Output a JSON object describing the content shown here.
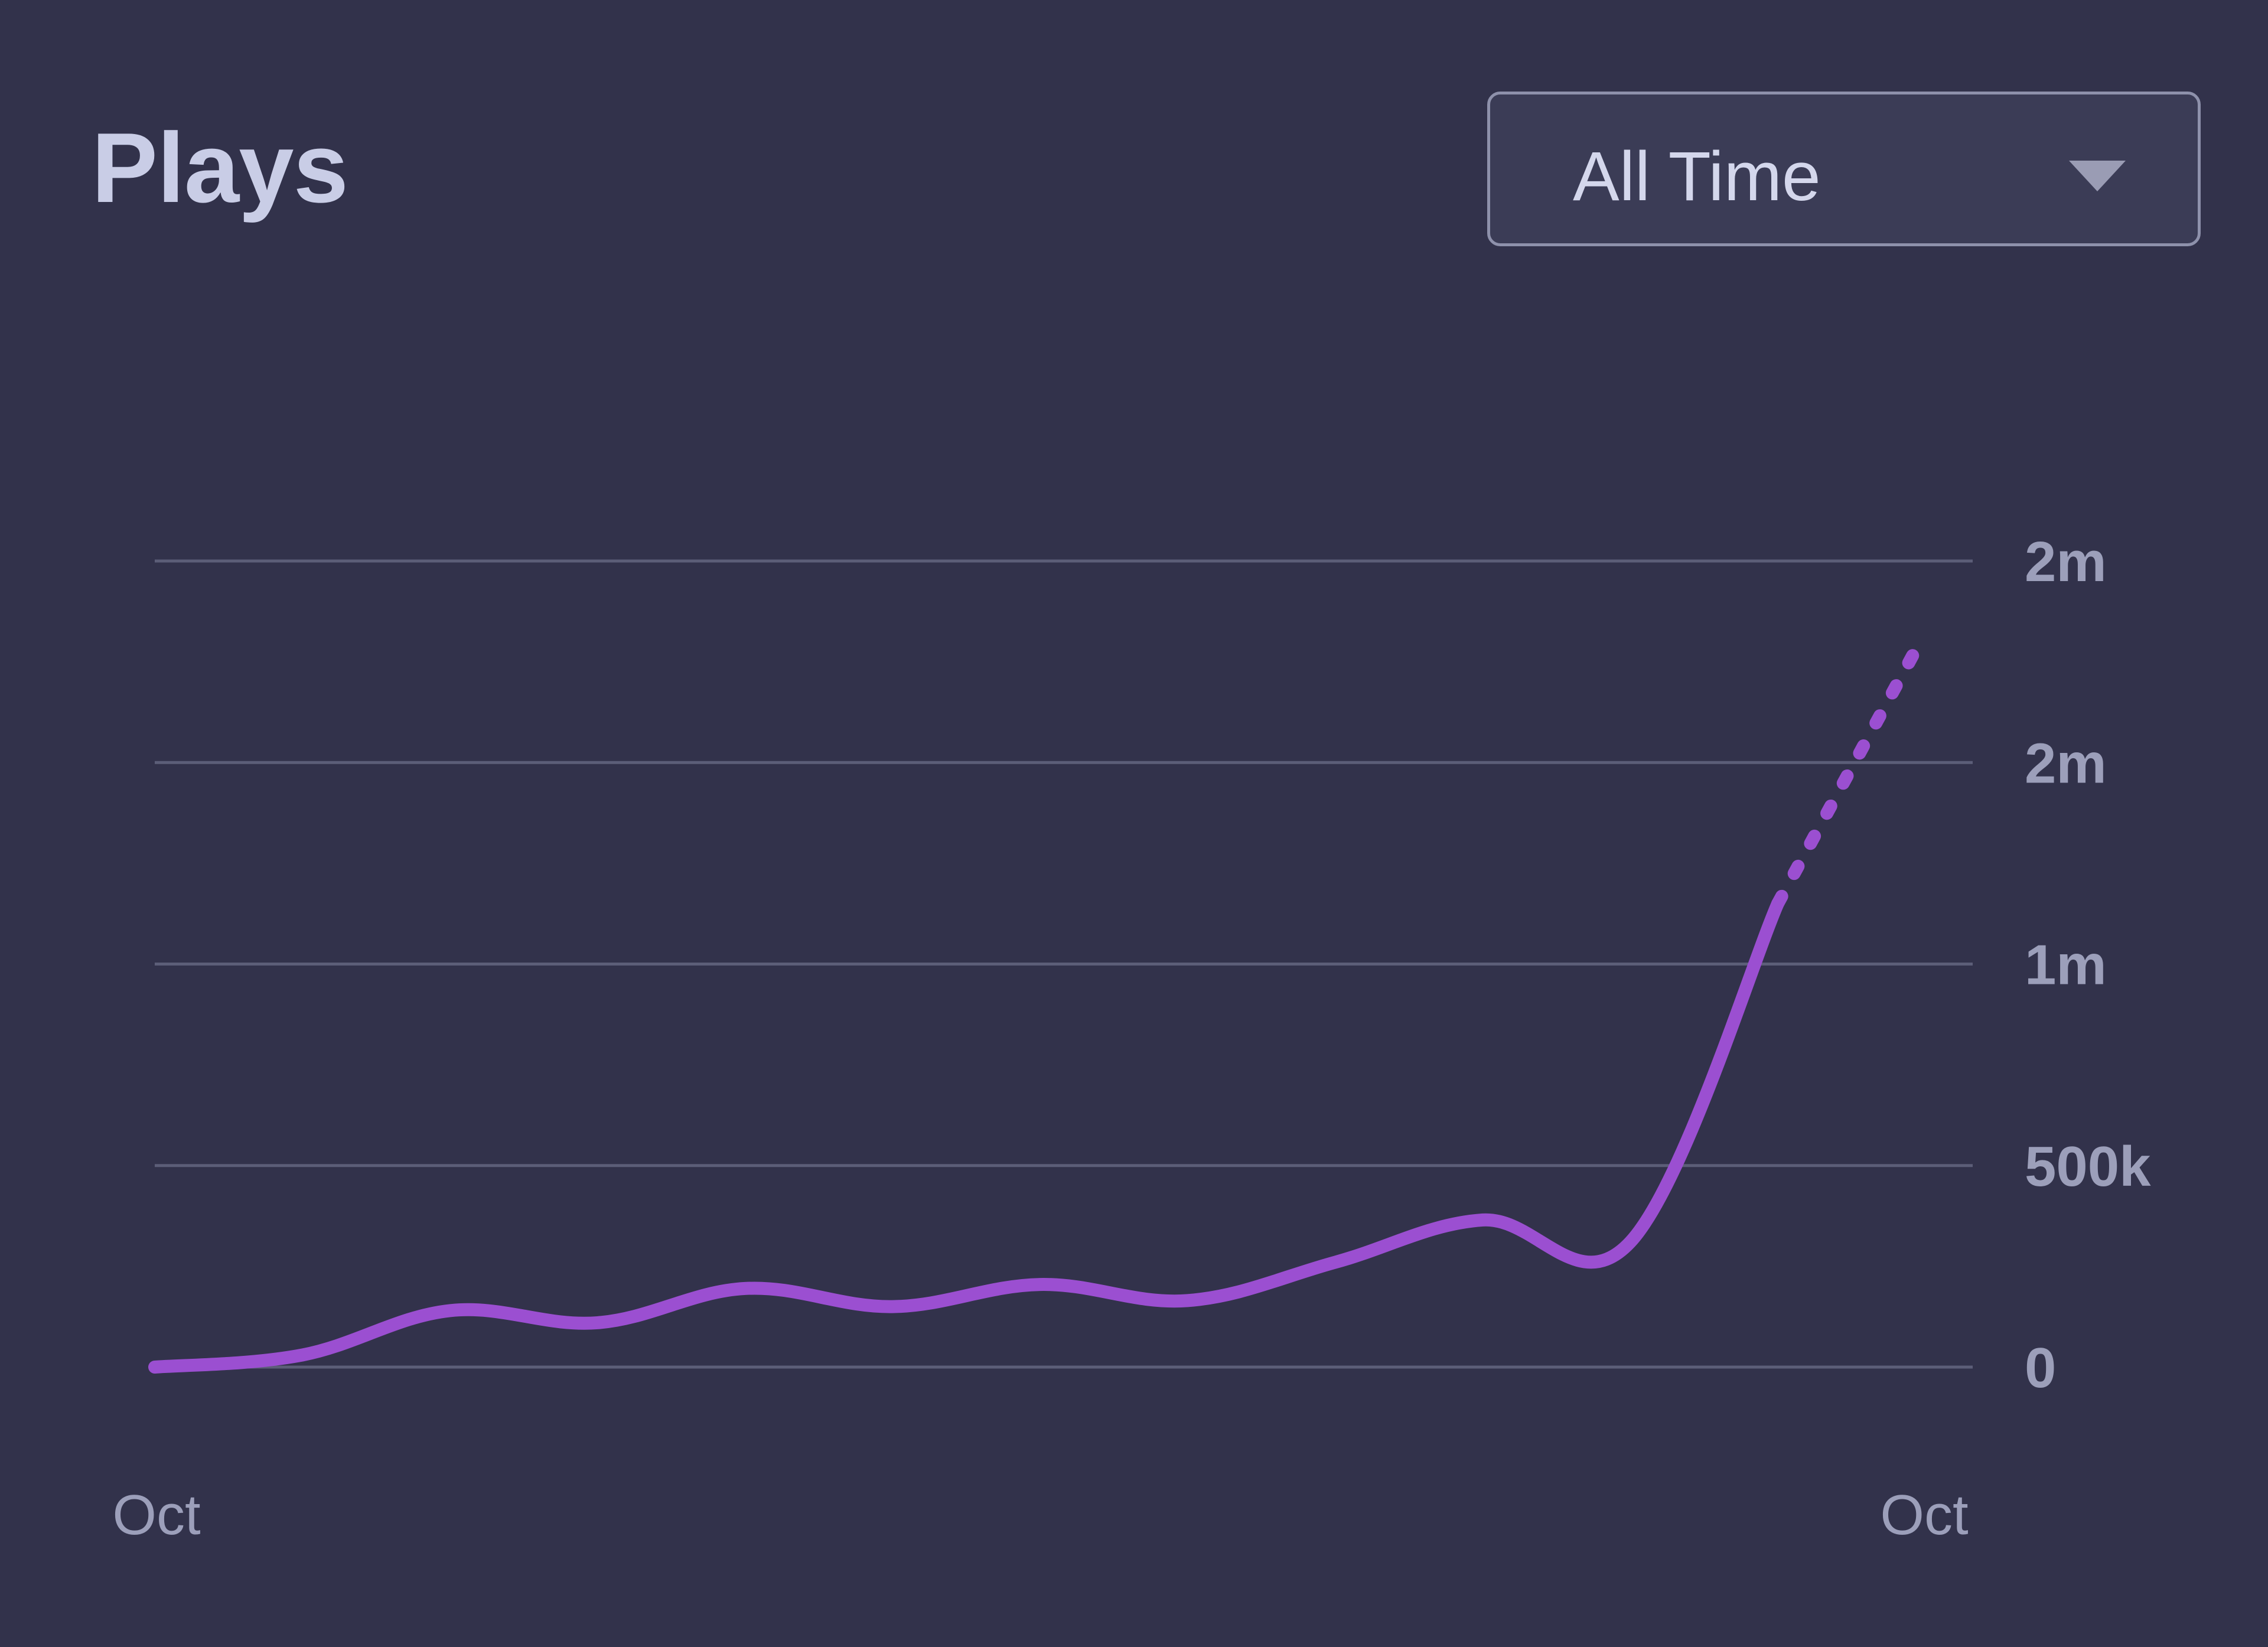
{
  "header": {
    "title": "Plays"
  },
  "range_select": {
    "value": "All Time"
  },
  "colors": {
    "background": "#32324b",
    "line": "#9b4fd1",
    "grid": "#5c5e78"
  },
  "chart_data": {
    "type": "line",
    "title": "Plays",
    "y_tick_labels": [
      "0",
      "500k",
      "1m",
      "2m",
      "2m"
    ],
    "y_tick_values": [
      0,
      500000,
      1000000,
      1500000,
      2000000
    ],
    "ylim": [
      0,
      2000000
    ],
    "x_tick_labels": [
      "Oct",
      "Oct"
    ],
    "grid": true,
    "series": [
      {
        "values": [
          0,
          30000,
          140000,
          110000,
          195000,
          150000,
          205000,
          165000,
          260000,
          365000,
          310000,
          1150000
        ],
        "style": "solid"
      },
      {
        "values": [
          1150000,
          1770000
        ],
        "style": "dotted"
      }
    ]
  }
}
